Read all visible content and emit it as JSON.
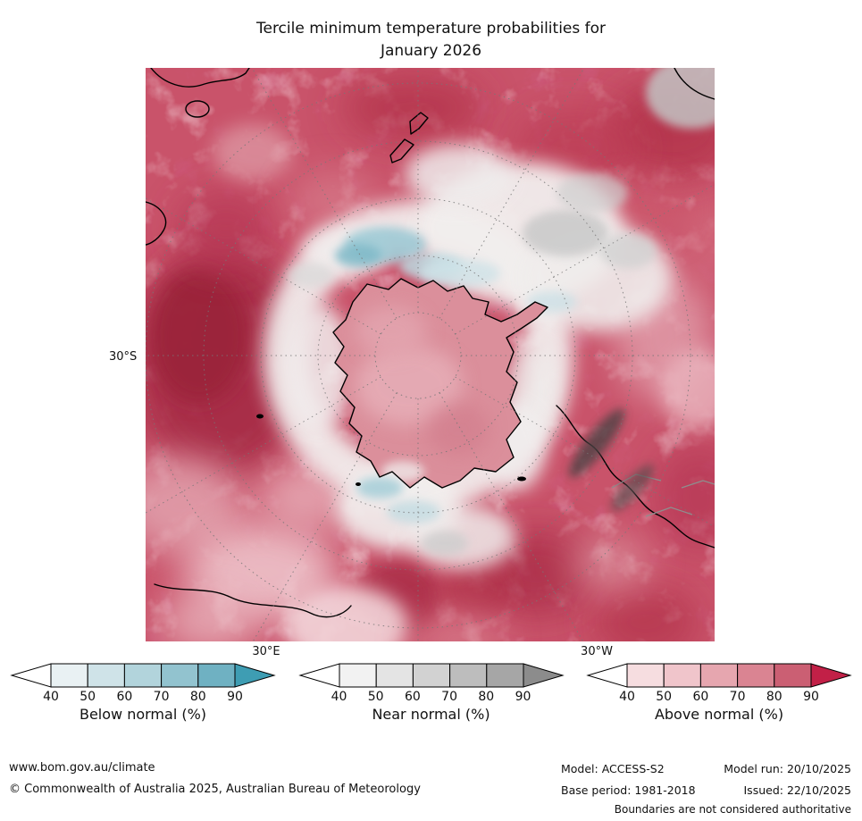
{
  "title": {
    "line1": "Tercile minimum temperature probabilities for",
    "line2": "January 2026"
  },
  "map": {
    "lat_label": "30°S",
    "lon_label_east": "30°E",
    "lon_label_west": "30°W"
  },
  "legends": [
    {
      "id": "below-normal",
      "label": "Below normal (%)",
      "ticks": [
        "40",
        "50",
        "60",
        "70",
        "80",
        "90"
      ],
      "tip_left_color": "#ffffff",
      "cell_colors": [
        "#e9f1f3",
        "#cfe3e8",
        "#b2d4dc",
        "#92c3cf",
        "#6fb1c2"
      ],
      "tip_right_color": "#3e9db3"
    },
    {
      "id": "near-normal",
      "label": "Near normal (%)",
      "ticks": [
        "40",
        "50",
        "60",
        "70",
        "80",
        "90"
      ],
      "tip_left_color": "#ffffff",
      "cell_colors": [
        "#f2f2f2",
        "#e4e4e4",
        "#d2d2d2",
        "#bdbdbd",
        "#a6a6a6"
      ],
      "tip_right_color": "#8c8c8c"
    },
    {
      "id": "above-normal",
      "label": "Above normal (%)",
      "ticks": [
        "40",
        "50",
        "60",
        "70",
        "80",
        "90"
      ],
      "tip_left_color": "#ffffff",
      "cell_colors": [
        "#f6dde0",
        "#f0c5cb",
        "#e6a6af",
        "#da8492",
        "#cb5f73"
      ],
      "tip_right_color": "#c22047"
    }
  ],
  "footer": {
    "website": "www.bom.gov.au/climate",
    "copyright": "© Commonwealth of Australia 2025, Australian Bureau of Meteorology",
    "model": "Model: ACCESS-S2",
    "model_run": "Model run: 20/10/2025",
    "base_period": "Base period: 1981-2018",
    "issued": "Issued: 22/10/2025",
    "boundaries_note": "Boundaries are not considered authoritative"
  }
}
